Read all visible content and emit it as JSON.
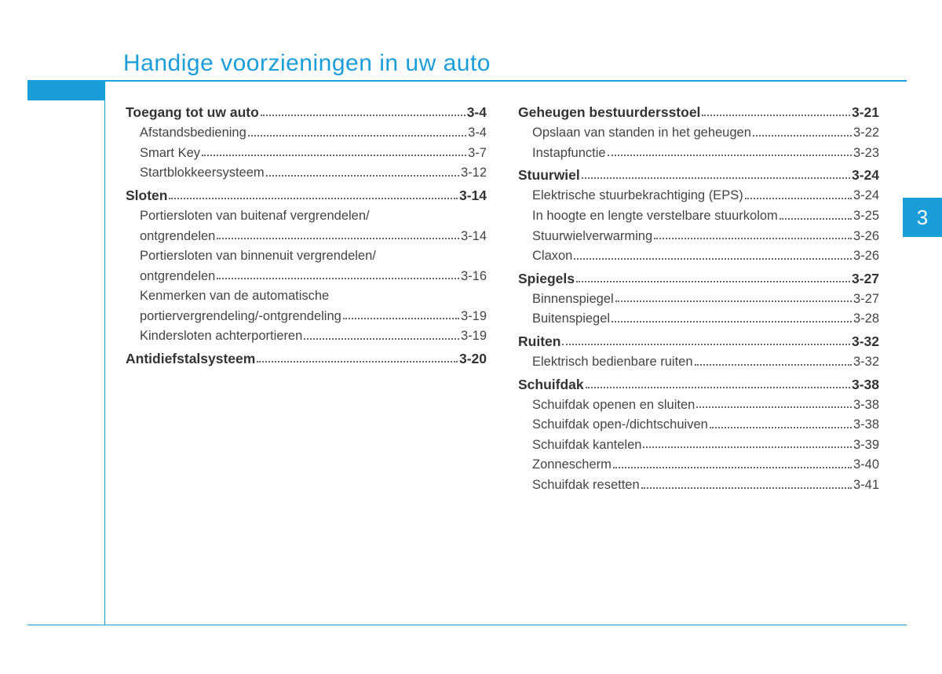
{
  "accent_color": "#1b9dd9",
  "text_color": "#444444",
  "title": "Handige voorzieningen in uw auto",
  "chapter_number": "3",
  "columns": [
    [
      {
        "type": "section",
        "label": "Toegang tot uw auto",
        "page": "3-4"
      },
      {
        "type": "sub",
        "label": "Afstandsbediening",
        "page": "3-4"
      },
      {
        "type": "sub",
        "label": "Smart Key",
        "page": "3-7"
      },
      {
        "type": "sub",
        "label": "Startblokkeersysteem",
        "page": "3-12"
      },
      {
        "type": "section",
        "label": "Sloten",
        "page": "3-14"
      },
      {
        "type": "sub2",
        "line1": "Portiersloten van buitenaf vergrendelen/",
        "line2": "ontgrendelen",
        "page": "3-14"
      },
      {
        "type": "sub2",
        "line1": "Portiersloten van binnenuit vergrendelen/",
        "line2": "ontgrendelen",
        "page": "3-16"
      },
      {
        "type": "sub2",
        "line1": "Kenmerken van de automatische",
        "line2": "portiervergrendeling/-ontgrendeling",
        "page": "3-19"
      },
      {
        "type": "sub",
        "label": "Kindersloten achterportieren",
        "page": "3-19"
      },
      {
        "type": "section",
        "label": "Antidiefstalsysteem",
        "page": "3-20"
      }
    ],
    [
      {
        "type": "section",
        "label": "Geheugen bestuurdersstoel",
        "page": "3-21"
      },
      {
        "type": "sub",
        "label": "Opslaan van standen in het geheugen",
        "page": "3-22"
      },
      {
        "type": "sub",
        "label": "Instapfunctie",
        "page": "3-23"
      },
      {
        "type": "section",
        "label": "Stuurwiel",
        "page": "3-24"
      },
      {
        "type": "sub",
        "label": "Elektrische stuurbekrachtiging (EPS)",
        "page": "3-24"
      },
      {
        "type": "sub",
        "label": "In hoogte en lengte verstelbare stuurkolom",
        "page": "3-25"
      },
      {
        "type": "sub",
        "label": "Stuurwielverwarming",
        "page": "3-26"
      },
      {
        "type": "sub",
        "label": "Claxon",
        "page": "3-26"
      },
      {
        "type": "section",
        "label": "Spiegels",
        "page": "3-27"
      },
      {
        "type": "sub",
        "label": "Binnenspiegel",
        "page": "3-27"
      },
      {
        "type": "sub",
        "label": "Buitenspiegel",
        "page": "3-28"
      },
      {
        "type": "section",
        "label": "Ruiten",
        "page": "3-32"
      },
      {
        "type": "sub",
        "label": "Elektrisch bedienbare ruiten",
        "page": "3-32"
      },
      {
        "type": "section",
        "label": "Schuifdak",
        "page": "3-38"
      },
      {
        "type": "sub",
        "label": "Schuifdak openen en sluiten",
        "page": "3-38"
      },
      {
        "type": "sub",
        "label": "Schuifdak open-/dichtschuiven",
        "page": "3-38"
      },
      {
        "type": "sub",
        "label": "Schuifdak kantelen",
        "page": "3-39"
      },
      {
        "type": "sub",
        "label": "Zonnescherm",
        "page": "3-40"
      },
      {
        "type": "sub",
        "label": "Schuifdak resetten",
        "page": "3-41"
      }
    ]
  ]
}
